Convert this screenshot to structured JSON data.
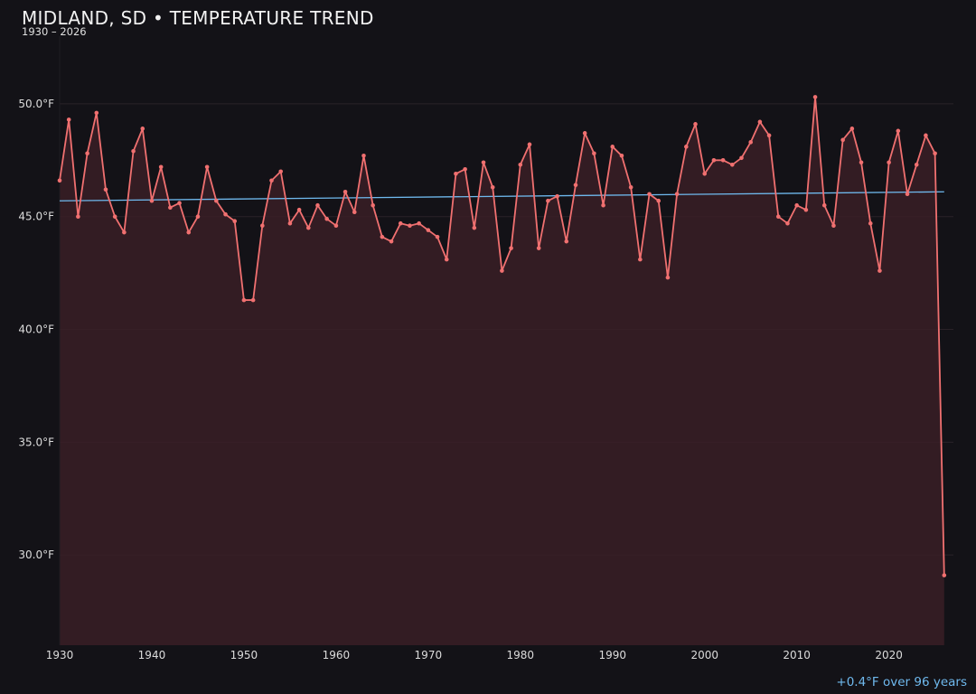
{
  "title": "MIDLAND, SD • TEMPERATURE TREND",
  "subtitle": "1930 – 2026",
  "trend_note": "+0.4°F over 96 years",
  "colors": {
    "background": "#131217",
    "line": "#f07070",
    "area_fill": "#3a1f26",
    "trend": "#6fb9ee",
    "grid": "#2a2228",
    "text": "#dcdcdc"
  },
  "chart_data": {
    "type": "line",
    "title": "MIDLAND, SD • TEMPERATURE TREND",
    "subtitle": "1930 – 2026",
    "xlabel": "",
    "ylabel": "",
    "xlim": [
      1930,
      2027
    ],
    "ylim": [
      26,
      53
    ],
    "x_ticks": [
      1930,
      1940,
      1950,
      1960,
      1970,
      1980,
      1990,
      2000,
      2010,
      2020
    ],
    "y_ticks": [
      30,
      35,
      40,
      45,
      50
    ],
    "y_tick_labels": [
      "30.0°F",
      "35.0°F",
      "40.0°F",
      "45.0°F",
      "50.0°F"
    ],
    "grid": true,
    "area_fill": true,
    "series": [
      {
        "x": [
          1930,
          1931,
          1932,
          1933,
          1934,
          1935,
          1936,
          1937,
          1938,
          1939,
          1940,
          1941,
          1942,
          1943,
          1944,
          1945,
          1946,
          1947,
          1948,
          1949,
          1950,
          1951,
          1952,
          1953,
          1954,
          1955,
          1956,
          1957,
          1958,
          1959,
          1960,
          1961,
          1962,
          1963,
          1964,
          1965,
          1966,
          1967,
          1968,
          1969,
          1970,
          1971,
          1972,
          1973,
          1974,
          1975,
          1976,
          1977,
          1978,
          1979,
          1980,
          1981,
          1982,
          1983,
          1984,
          1985,
          1986,
          1987,
          1988,
          1989,
          1990,
          1991,
          1992,
          1993,
          1994,
          1995,
          1996,
          1997,
          1998,
          1999,
          2000,
          2001,
          2002,
          2003,
          2004,
          2005,
          2006,
          2007,
          2008,
          2009,
          2010,
          2011,
          2012,
          2013,
          2014,
          2015,
          2016,
          2017,
          2018,
          2019,
          2020,
          2021,
          2022,
          2023,
          2024,
          2025,
          2026
        ],
        "values": [
          46.6,
          49.3,
          45.0,
          47.8,
          49.6,
          46.2,
          45.0,
          44.3,
          47.9,
          48.9,
          45.7,
          47.2,
          45.4,
          45.6,
          44.3,
          45.0,
          47.2,
          45.7,
          45.1,
          44.8,
          41.3,
          41.3,
          44.6,
          46.6,
          47.0,
          44.7,
          45.3,
          44.5,
          45.5,
          44.9,
          44.6,
          46.1,
          45.2,
          47.7,
          45.5,
          44.1,
          43.9,
          44.7,
          44.6,
          44.7,
          44.4,
          44.1,
          43.1,
          46.9,
          47.1,
          44.5,
          47.4,
          46.3,
          42.6,
          43.6,
          47.3,
          48.2,
          43.6,
          45.7,
          45.9,
          43.9,
          46.4,
          48.7,
          47.8,
          45.5,
          48.1,
          47.7,
          46.3,
          43.1,
          46.0,
          45.7,
          42.3,
          46.0,
          48.1,
          49.1,
          46.9,
          47.5,
          47.5,
          47.3,
          47.6,
          48.3,
          49.2,
          48.6,
          45.0,
          44.7,
          45.5,
          45.3,
          50.3,
          45.5,
          44.6,
          48.4,
          48.9,
          47.4,
          44.7,
          42.6,
          47.4,
          48.8,
          46.0,
          47.3,
          48.6,
          47.8,
          29.1
        ]
      }
    ],
    "trend_line": {
      "x": [
        1930,
        2026
      ],
      "y": [
        45.7,
        46.1
      ]
    }
  }
}
